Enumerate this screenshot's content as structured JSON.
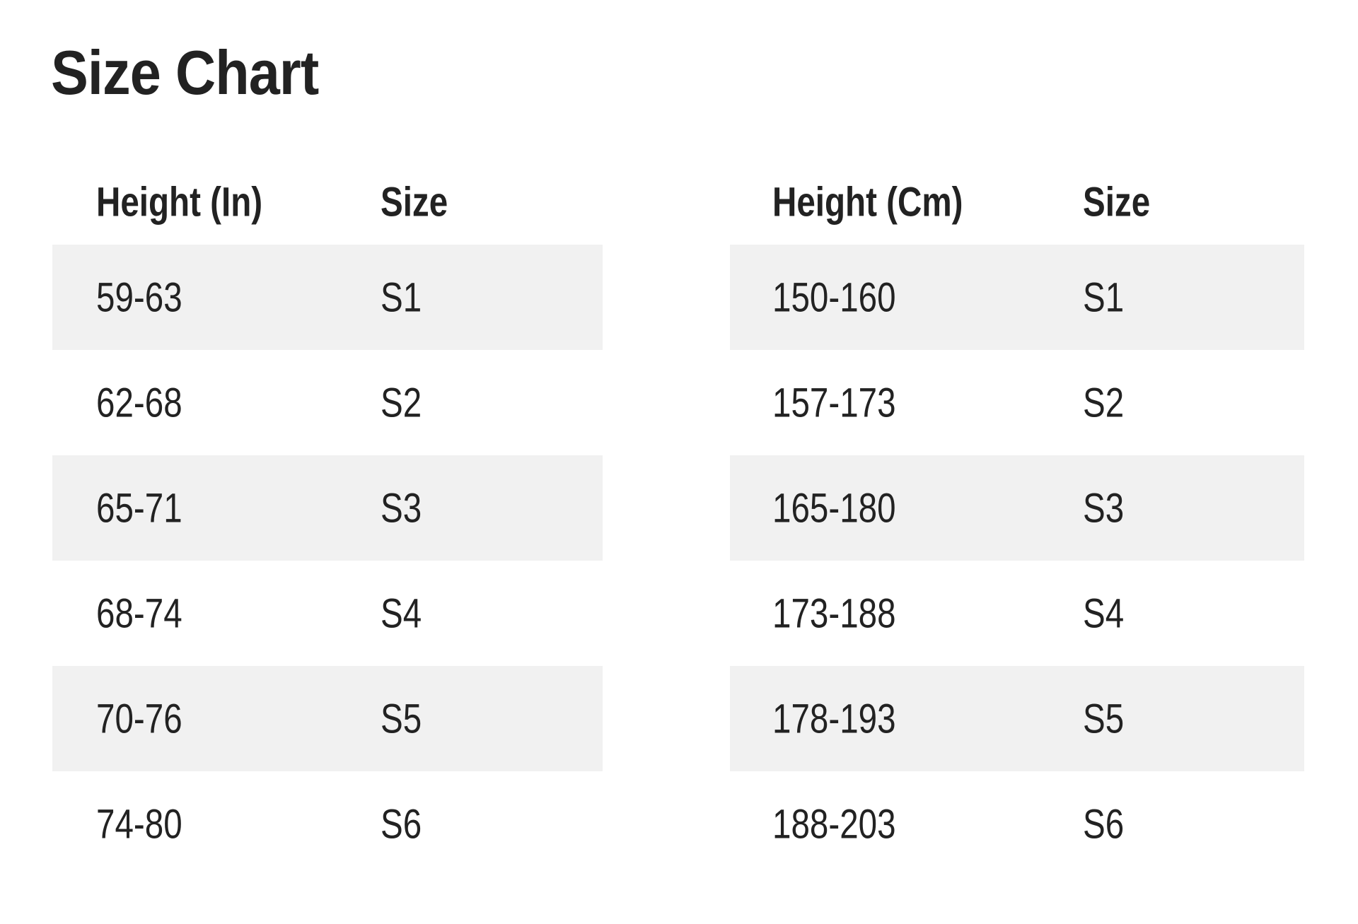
{
  "title": "Size Chart",
  "colors": {
    "text": "#222222",
    "row_shade": "#f1f1f1"
  },
  "tables": [
    {
      "headers": [
        "Height (In)",
        "Size"
      ],
      "rows": [
        [
          "59-63",
          "S1"
        ],
        [
          "62-68",
          "S2"
        ],
        [
          "65-71",
          "S3"
        ],
        [
          "68-74",
          "S4"
        ],
        [
          "70-76",
          "S5"
        ],
        [
          "74-80",
          "S6"
        ]
      ]
    },
    {
      "headers": [
        "Height (Cm)",
        "Size"
      ],
      "rows": [
        [
          "150-160",
          "S1"
        ],
        [
          "157-173",
          "S2"
        ],
        [
          "165-180",
          "S3"
        ],
        [
          "173-188",
          "S4"
        ],
        [
          "178-193",
          "S5"
        ],
        [
          "188-203",
          "S6"
        ]
      ]
    }
  ]
}
